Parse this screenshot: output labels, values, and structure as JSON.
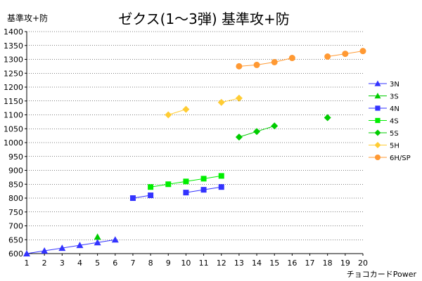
{
  "chart_data": {
    "type": "line",
    "title": "ゼクス(1～3弾) 基準攻+防",
    "ylabel": "基準攻+防",
    "xlabel": "チョコカードPower",
    "xlim": [
      1,
      20
    ],
    "ylim": [
      600,
      1400
    ],
    "x_ticks": [
      1,
      2,
      3,
      4,
      5,
      6,
      7,
      8,
      9,
      10,
      11,
      12,
      13,
      14,
      15,
      16,
      17,
      18,
      19,
      20
    ],
    "y_ticks": [
      600,
      650,
      700,
      750,
      800,
      850,
      900,
      950,
      1000,
      1050,
      1100,
      1150,
      1200,
      1250,
      1300,
      1350,
      1400
    ],
    "grid": "horizontal-dotted",
    "legend_position": "right",
    "series": [
      {
        "name": "3N",
        "color": "#3333ff",
        "marker": "triangle",
        "segments": [
          [
            [
              1,
              600
            ],
            [
              2,
              610
            ],
            [
              3,
              620
            ],
            [
              4,
              630
            ],
            [
              5,
              640
            ],
            [
              6,
              650
            ]
          ]
        ]
      },
      {
        "name": "3S",
        "color": "#00cc00",
        "marker": "triangle",
        "segments": [
          [
            [
              5,
              660
            ]
          ]
        ]
      },
      {
        "name": "4N",
        "color": "#3333ff",
        "marker": "square",
        "segments": [
          [
            [
              7,
              800
            ],
            [
              8,
              810
            ]
          ],
          [
            [
              10,
              820
            ],
            [
              11,
              830
            ],
            [
              12,
              840
            ]
          ]
        ]
      },
      {
        "name": "4S",
        "color": "#00ee00",
        "marker": "square",
        "segments": [
          [
            [
              8,
              840
            ],
            [
              9,
              850
            ],
            [
              10,
              860
            ],
            [
              11,
              870
            ],
            [
              12,
              880
            ]
          ]
        ]
      },
      {
        "name": "5S",
        "color": "#00cc00",
        "marker": "diamond",
        "segments": [
          [
            [
              13,
              1020
            ],
            [
              14,
              1040
            ],
            [
              15,
              1060
            ]
          ],
          [
            [
              18,
              1090
            ]
          ]
        ]
      },
      {
        "name": "5H",
        "color": "#ffcc33",
        "marker": "diamond",
        "segments": [
          [
            [
              9,
              1100
            ],
            [
              10,
              1120
            ]
          ],
          [
            [
              12,
              1145
            ],
            [
              13,
              1160
            ]
          ]
        ]
      },
      {
        "name": "6H/SP",
        "color": "#ff9933",
        "marker": "circle",
        "segments": [
          [
            [
              13,
              1275
            ],
            [
              14,
              1280
            ],
            [
              15,
              1290
            ],
            [
              16,
              1305
            ]
          ],
          [
            [
              18,
              1310
            ],
            [
              19,
              1320
            ],
            [
              20,
              1330
            ]
          ]
        ]
      }
    ]
  }
}
